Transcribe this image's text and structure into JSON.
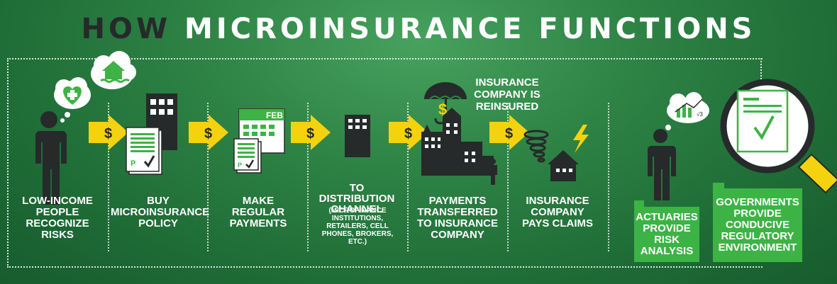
{
  "title": {
    "part1": "HOW",
    "part2": "MICROINSURANCE FUNCTIONS"
  },
  "colors": {
    "background": "#2f8446",
    "dark": "#262a2a",
    "accent_green": "#3db346",
    "arrow_yellow": "#f4d20f"
  },
  "arrow_symbol": "$",
  "steps": [
    {
      "label": "LOW-INCOME PEOPLE RECOGNIZE RISKS",
      "icon": "person-thinking-icon"
    },
    {
      "label": "BUY MICROINSURANCE POLICY",
      "icon": "building-document-icon"
    },
    {
      "label": "MAKE REGULAR PAYMENTS",
      "icon": "calendar-icon",
      "calendar_month": "FEB"
    },
    {
      "label": "TO DISTRIBUTION CHANNEL",
      "sublabel": "(MICROFINANCE INSTITUTIONS, RETAILERS, CELL PHONES, BROKERS, ETC.)",
      "icon": "building-icon"
    },
    {
      "label": "PAYMENTS TRANSFERRED TO INSURANCE COMPANY",
      "icon": "city-icon"
    },
    {
      "label": "INSURANCE COMPANY PAYS CLAIMS",
      "icon": "disaster-house-icon"
    }
  ],
  "reinsured_label": "INSURANCE COMPANY IS REINSURED",
  "support": [
    {
      "label": "ACTUARIES PROVIDE RISK ANALYSIS",
      "icon": "actuary-icon"
    },
    {
      "label": "GOVERNMENTS PROVIDE CONDUCIVE REGULATORY ENVIRONMENT",
      "icon": "magnifier-icon"
    }
  ],
  "document_mark": "P",
  "actuary_formula": "√3"
}
